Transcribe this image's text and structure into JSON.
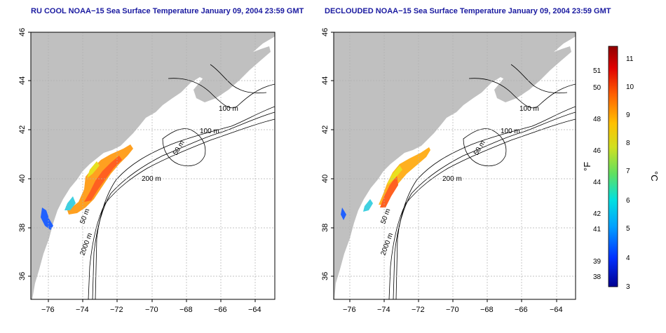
{
  "panels": [
    {
      "title": "RU COOL NOAA−15 Sea Surface Temperature January 09, 2004 23:59 GMT",
      "x_ticks": [
        "−76",
        "−74",
        "−72",
        "−70",
        "−68",
        "−66",
        "−64"
      ],
      "y_ticks": [
        "46",
        "44",
        "42",
        "40",
        "38",
        "36"
      ],
      "contour_labels": [
        "100 m",
        "100 m",
        "50 m",
        "200 m",
        "50 m",
        "2000 m"
      ]
    },
    {
      "title": "DECLOUDED NOAA−15 Sea Surface Temperature January 09, 2004 23:59 GMT",
      "x_ticks": [
        "−76",
        "−74",
        "−72",
        "−70",
        "−68",
        "−66",
        "−64"
      ],
      "y_ticks": [
        "46",
        "44",
        "42",
        "40",
        "38",
        "36"
      ],
      "contour_labels": [
        "100 m",
        "100 m",
        "50 m",
        "200 m",
        "50 m",
        "2000 m"
      ]
    }
  ],
  "colorbar": {
    "fahrenheit_unit": "°F",
    "celsius_unit": "°C",
    "fahrenheit_ticks": [
      "51",
      "50",
      "48",
      "46",
      "44",
      "42",
      "41",
      "39",
      "38"
    ],
    "celsius_ticks": [
      "11",
      "10",
      "9",
      "8",
      "7",
      "6",
      "5",
      "4",
      "3"
    ]
  },
  "colors": {
    "land": "#c0c0c0",
    "title": "#1a1aa0",
    "grid": "#b0b0b0",
    "contour": "#000000"
  }
}
